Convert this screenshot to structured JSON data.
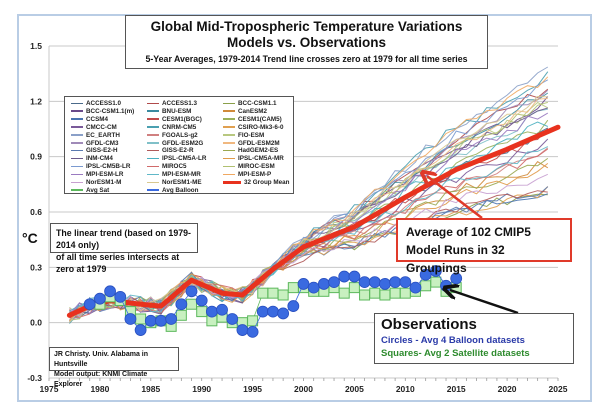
{
  "chart_data": {
    "type": "line",
    "title": "Global Mid-Tropospheric Temperature Variations",
    "subtitle": "Models vs. Observations",
    "note": "5-Year Averages, 1979-2014 Trend line crosses zero at 1979 for all time series",
    "xlabel": "",
    "ylabel": "°C",
    "xlim": [
      1975,
      2025
    ],
    "ylim": [
      -0.3,
      1.5
    ],
    "x_ticks": [
      "1975",
      "1980",
      "1985",
      "1990",
      "1995",
      "2000",
      "2005",
      "2010",
      "2015",
      "2020",
      "2025"
    ],
    "y_ticks": [
      "1.5",
      "1.2",
      "0.9",
      "0.6",
      "0.3",
      "0.0",
      "-0.3"
    ],
    "grid": "horizontal",
    "legend_position": "upper-left",
    "legend": [
      {
        "name": "ACCESS1.0",
        "color": "#4a6a8a"
      },
      {
        "name": "ACCESS1.3",
        "color": "#b04a4a"
      },
      {
        "name": "BCC-CSM1.1",
        "color": "#8aa04a"
      },
      {
        "name": "BCC-CSM1.1(m)",
        "color": "#6a4a8a"
      },
      {
        "name": "BNU-ESM",
        "color": "#3a8aa0"
      },
      {
        "name": "CanESM2",
        "color": "#d08a3a"
      },
      {
        "name": "CCSM4",
        "color": "#4a74b0"
      },
      {
        "name": "CESM1(BGC)",
        "color": "#c04a4a"
      },
      {
        "name": "CESM1(CAM5)",
        "color": "#9ab05a"
      },
      {
        "name": "CMCC-CM",
        "color": "#7a5a9a"
      },
      {
        "name": "CNRM-CM5",
        "color": "#4aa0b0"
      },
      {
        "name": "CSIRO-Mk3-6-0",
        "color": "#e0a050"
      },
      {
        "name": "EC_EARTH",
        "color": "#8aa0c8"
      },
      {
        "name": "FGOALS-g2",
        "color": "#d08080"
      },
      {
        "name": "FIO-ESM",
        "color": "#b8c880"
      },
      {
        "name": "GFDL-CM3",
        "color": "#a08ab8"
      },
      {
        "name": "GFDL-ESM2G",
        "color": "#80c0c8"
      },
      {
        "name": "GFDL-ESM2M",
        "color": "#f0b880"
      },
      {
        "name": "GISS-E2-H",
        "color": "#5a7ab0"
      },
      {
        "name": "GISS-E2-R",
        "color": "#b05a5a"
      },
      {
        "name": "HadGEM2-ES",
        "color": "#9aa850"
      },
      {
        "name": "INM-CM4",
        "color": "#6a5a8a"
      },
      {
        "name": "IPSL-CM5A-LR",
        "color": "#4ab0c0"
      },
      {
        "name": "IPSL-CM5A-MR",
        "color": "#e09a4a"
      },
      {
        "name": "IPSL-CM5B-LR",
        "color": "#7a9ad0"
      },
      {
        "name": "MIROC5",
        "color": "#d06a6a"
      },
      {
        "name": "MIROC-ESM",
        "color": "#b0c070"
      },
      {
        "name": "MPI-ESM-LR",
        "color": "#9a7ac0"
      },
      {
        "name": "MPI-ESM-MR",
        "color": "#60b8c8"
      },
      {
        "name": "MPI-ESM-P",
        "color": "#f0a860"
      },
      {
        "name": "NorESM1-M",
        "color": "#c8a0d0"
      },
      {
        "name": "NorESM1-ME",
        "color": "#d8c890"
      },
      {
        "name": "32 Group Mean",
        "color": "#e8321e"
      },
      {
        "name": "Avg Sat",
        "color": "#5cb85c"
      },
      {
        "name": "Avg Balloon",
        "color": "#3a6ae0"
      }
    ],
    "series": [
      {
        "name": "32 Group Mean",
        "color": "#e8321e",
        "x": [
          1977,
          1979,
          1981,
          1984,
          1986,
          1989,
          1992,
          1994,
          1997,
          2000,
          2005,
          2010,
          2015,
          2020,
          2025
        ],
        "values": [
          0.04,
          0.09,
          0.12,
          0.1,
          0.09,
          0.23,
          0.16,
          0.15,
          0.29,
          0.41,
          0.52,
          0.68,
          0.83,
          0.94,
          1.06
        ]
      },
      {
        "name": "Avg Balloon",
        "color": "#3a6ae0",
        "marker": "circle",
        "x": [
          1979,
          1980,
          1981,
          1982,
          1983,
          1984,
          1985,
          1986,
          1987,
          1988,
          1989,
          1990,
          1991,
          1992,
          1993,
          1994,
          1995,
          1996,
          1997,
          1998,
          1999,
          2000,
          2001,
          2002,
          2003,
          2004,
          2005,
          2006,
          2007,
          2008,
          2009,
          2010,
          2011,
          2012,
          2013,
          2014,
          2015
        ],
        "values": [
          0.1,
          0.13,
          0.17,
          0.14,
          0.02,
          -0.04,
          0.01,
          0.01,
          0.02,
          0.1,
          0.17,
          0.12,
          0.06,
          0.07,
          0.02,
          -0.04,
          -0.05,
          0.06,
          0.06,
          0.05,
          0.09,
          0.21,
          0.19,
          0.21,
          0.22,
          0.25,
          0.25,
          0.22,
          0.22,
          0.21,
          0.22,
          0.22,
          0.19,
          0.26,
          0.28,
          0.2,
          0.24
        ]
      },
      {
        "name": "Avg Sat",
        "color": "#5cb85c",
        "marker": "square",
        "x": [
          1980,
          1981,
          1982,
          1983,
          1984,
          1985,
          1986,
          1987,
          1988,
          1989,
          1990,
          1991,
          1992,
          1993,
          1994,
          1995,
          1996,
          1997,
          1998,
          1999,
          2000,
          2001,
          2002,
          2003,
          2004,
          2005,
          2006,
          2007,
          2008,
          2009,
          2010,
          2011,
          2012,
          2013,
          2014,
          2015
        ],
        "values": [
          0.1,
          0.14,
          0.12,
          0.06,
          0.02,
          0.0,
          0.01,
          -0.02,
          0.04,
          0.1,
          0.06,
          0.01,
          0.03,
          0.0,
          0.0,
          0.01,
          0.16,
          0.16,
          0.15,
          0.19,
          0.19,
          0.17,
          0.17,
          0.19,
          0.16,
          0.19,
          0.15,
          0.16,
          0.15,
          0.16,
          0.16,
          0.17,
          0.2,
          0.22,
          0.17,
          0.19
        ]
      }
    ],
    "model_runs_note": "32 individual model group lines spread around the mean, ranging ~0.45 to ~1.5 by 2025"
  },
  "annotations": {
    "title_line1": "Global Mid-Tropospheric Temperature Variations",
    "title_line2": "Models vs. Observations",
    "title_line3": "5-Year Averages, 1979-2014 Trend line crosses zero at 1979 for all time series",
    "trend_line1": "The linear trend (based on 1979-2014 only)",
    "trend_line2": "of all time series intersects at zero at 1979",
    "avg_line1": "Average of 102 CMIP5",
    "avg_line2": "Model Runs in 32 Groupings",
    "obs_title": "Observations",
    "obs_circles": "Circles - Avg 4 Balloon datasets",
    "obs_squares": "Squares- Avg 2 Satellite datasets",
    "credit_line1": "JR Christy. Univ. Alabama in Huntsville",
    "credit_line2": "Model output: KNMI Climate Explorer",
    "ylabel": "°C"
  }
}
